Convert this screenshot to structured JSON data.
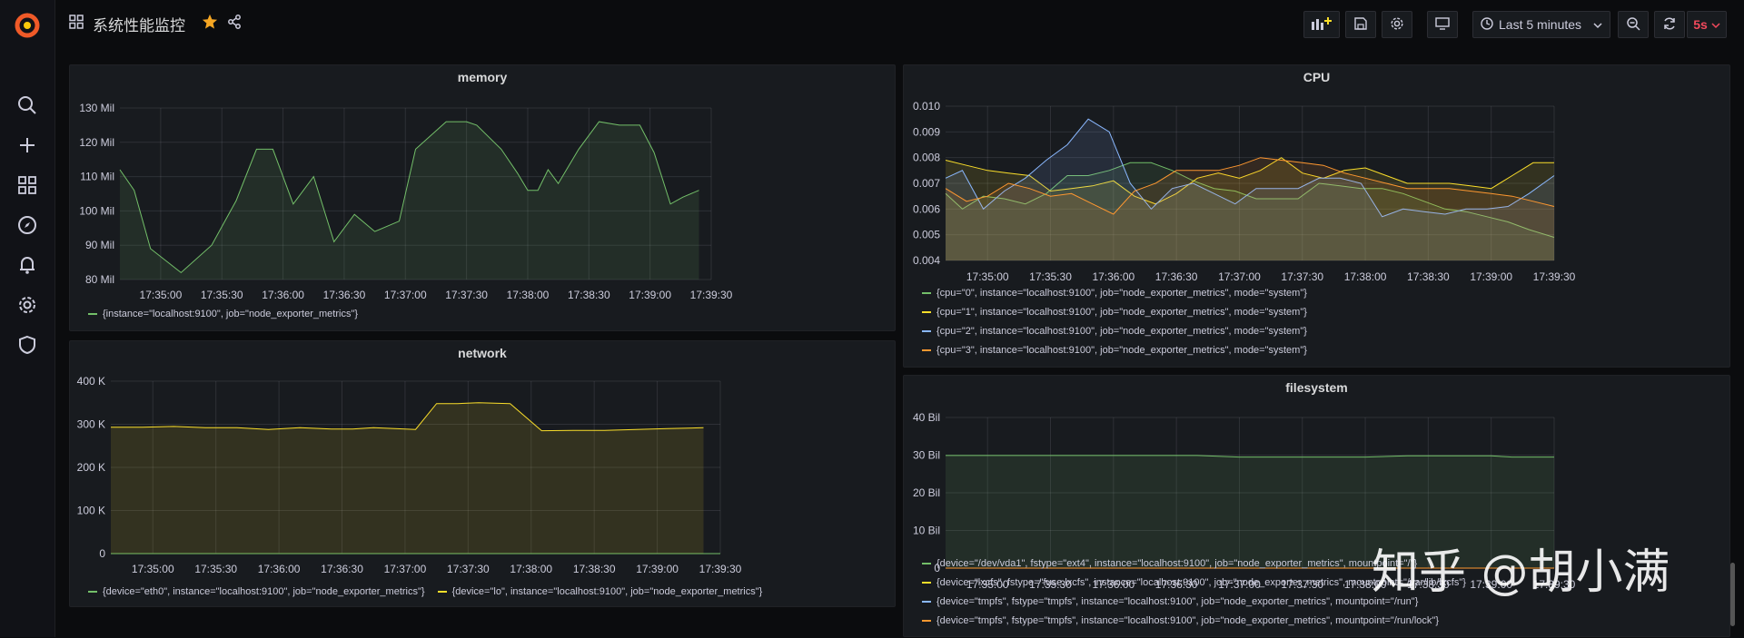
{
  "dashboard": {
    "title": "系统性能监控",
    "time_range": "Last 5 minutes",
    "refresh": "5s"
  },
  "colors": {
    "green": "#73bf69",
    "yellow": "#fade2a",
    "blue": "#8ab8ff",
    "orange": "#ff9830",
    "red": "#f2495c",
    "lightblue": "#5794f2",
    "tealblue": "#6ed0e0",
    "gold": "#eab839"
  },
  "watermark": "知乎 @胡小满",
  "chart_data": [
    {
      "id": "memory",
      "type": "area",
      "title": "memory",
      "ylim": [
        80,
        130
      ],
      "yticks": [
        80,
        90,
        100,
        110,
        120,
        130
      ],
      "ytick_labels": [
        "80 Mil",
        "90 Mil",
        "100 Mil",
        "110 Mil",
        "120 Mil",
        "130 Mil"
      ],
      "xlim": [
        0,
        290
      ],
      "xticks": [
        20,
        50,
        80,
        110,
        140,
        170,
        200,
        230,
        260,
        290
      ],
      "xtick_labels": [
        "17:35:00",
        "17:35:30",
        "17:36:00",
        "17:36:30",
        "17:37:00",
        "17:37:30",
        "17:38:00",
        "17:38:30",
        "17:39:00",
        "17:39:30"
      ],
      "series": [
        {
          "name": "{instance=\"localhost:9100\", job=\"node_exporter_metrics\"}",
          "color": "#73bf69",
          "x": [
            0,
            7,
            15,
            30,
            45,
            57,
            67,
            75,
            85,
            95,
            105,
            115,
            125,
            137,
            145,
            160,
            170,
            175,
            187,
            195,
            200,
            205,
            210,
            215,
            225,
            235,
            245,
            255,
            262,
            270,
            276,
            284
          ],
          "y": [
            112,
            106,
            89,
            82,
            90,
            103,
            118,
            118,
            102,
            110,
            91,
            99,
            94,
            97,
            118,
            126,
            126,
            125,
            118,
            111,
            106,
            106,
            112,
            108,
            118,
            126,
            125,
            125,
            117,
            102,
            104,
            106
          ]
        }
      ],
      "legend": "bottom"
    },
    {
      "id": "network",
      "type": "area",
      "title": "network",
      "ylim": [
        0,
        400000
      ],
      "yticks": [
        0,
        100000,
        200000,
        300000,
        400000
      ],
      "ytick_labels": [
        "0",
        "100 K",
        "200 K",
        "300 K",
        "400 K"
      ],
      "xlim": [
        0,
        290
      ],
      "xticks": [
        20,
        50,
        80,
        110,
        140,
        170,
        200,
        230,
        260,
        290
      ],
      "xtick_labels": [
        "17:35:00",
        "17:35:30",
        "17:36:00",
        "17:36:30",
        "17:37:00",
        "17:37:30",
        "17:38:00",
        "17:38:30",
        "17:39:00",
        "17:39:30"
      ],
      "series": [
        {
          "name": "{device=\"eth0\", instance=\"localhost:9100\", job=\"node_exporter_metrics\"}",
          "color": "#73bf69",
          "x": [
            0,
            290
          ],
          "y": [
            0,
            0
          ]
        },
        {
          "name": "{device=\"lo\", instance=\"localhost:9100\", job=\"node_exporter_metrics\"}",
          "color": "#fade2a",
          "x": [
            0,
            15,
            30,
            45,
            60,
            75,
            90,
            105,
            115,
            125,
            135,
            145,
            155,
            165,
            175,
            190,
            205,
            220,
            235,
            250,
            265,
            282
          ],
          "y": [
            293000,
            293000,
            295000,
            292000,
            292000,
            288000,
            292000,
            289000,
            289000,
            292000,
            290000,
            288000,
            348000,
            348000,
            350000,
            348000,
            285000,
            286000,
            286000,
            288000,
            290000,
            292000
          ]
        }
      ],
      "legend": "bottom"
    },
    {
      "id": "cpu",
      "type": "area",
      "title": "CPU",
      "ylim": [
        0.004,
        0.01
      ],
      "yticks": [
        0.004,
        0.005,
        0.006,
        0.007,
        0.008,
        0.009,
        0.01
      ],
      "ytick_labels": [
        "0.004",
        "0.005",
        "0.006",
        "0.007",
        "0.008",
        "0.009",
        "0.010"
      ],
      "xlim": [
        0,
        290
      ],
      "xticks": [
        20,
        50,
        80,
        110,
        140,
        170,
        200,
        230,
        260,
        290
      ],
      "xtick_labels": [
        "17:35:00",
        "17:35:30",
        "17:36:00",
        "17:36:30",
        "17:37:00",
        "17:37:30",
        "17:38:00",
        "17:38:30",
        "17:39:00",
        "17:39:30"
      ],
      "series": [
        {
          "name": "{cpu=\"0\", instance=\"localhost:9100\", job=\"node_exporter_metrics\", mode=\"system\"}",
          "color": "#73bf69",
          "x": [
            0,
            8,
            18,
            28,
            38,
            48,
            58,
            68,
            78,
            88,
            98,
            108,
            118,
            128,
            138,
            148,
            158,
            168,
            178,
            188,
            198,
            208,
            218,
            228,
            238,
            248,
            258,
            268,
            278,
            290
          ],
          "y": [
            0.0066,
            0.006,
            0.0065,
            0.0064,
            0.0062,
            0.0066,
            0.0073,
            0.0073,
            0.0075,
            0.0078,
            0.0078,
            0.0075,
            0.0071,
            0.0068,
            0.0067,
            0.0064,
            0.0064,
            0.0064,
            0.007,
            0.0069,
            0.0068,
            0.0068,
            0.0066,
            0.0063,
            0.006,
            0.0059,
            0.0057,
            0.0055,
            0.0052,
            0.0049
          ]
        },
        {
          "name": "{cpu=\"1\", instance=\"localhost:9100\", job=\"node_exporter_metrics\", mode=\"system\"}",
          "color": "#fade2a",
          "x": [
            0,
            10,
            20,
            30,
            40,
            50,
            60,
            70,
            80,
            90,
            100,
            110,
            120,
            130,
            140,
            150,
            160,
            170,
            180,
            190,
            200,
            210,
            220,
            230,
            240,
            250,
            260,
            270,
            280,
            290
          ],
          "y": [
            0.0079,
            0.0077,
            0.0075,
            0.0074,
            0.0073,
            0.0067,
            0.0068,
            0.0069,
            0.0071,
            0.0065,
            0.0062,
            0.0066,
            0.0072,
            0.0074,
            0.0072,
            0.0075,
            0.008,
            0.0074,
            0.0072,
            0.0075,
            0.0076,
            0.0073,
            0.007,
            0.007,
            0.007,
            0.0069,
            0.0068,
            0.0073,
            0.0078,
            0.0078
          ]
        },
        {
          "name": "{cpu=\"2\", instance=\"localhost:9100\", job=\"node_exporter_metrics\", mode=\"system\"}",
          "color": "#8ab8ff",
          "x": [
            0,
            8,
            18,
            28,
            38,
            48,
            58,
            68,
            78,
            88,
            98,
            108,
            118,
            128,
            138,
            148,
            158,
            168,
            178,
            188,
            198,
            208,
            218,
            228,
            238,
            248,
            258,
            268,
            278,
            290
          ],
          "y": [
            0.0072,
            0.0075,
            0.006,
            0.0067,
            0.0072,
            0.0079,
            0.0085,
            0.0095,
            0.009,
            0.007,
            0.006,
            0.0068,
            0.007,
            0.0066,
            0.0062,
            0.0068,
            0.0068,
            0.0068,
            0.0072,
            0.0072,
            0.007,
            0.0057,
            0.006,
            0.0059,
            0.0058,
            0.006,
            0.006,
            0.0061,
            0.0066,
            0.0073
          ]
        },
        {
          "name": "{cpu=\"3\", instance=\"localhost:9100\", job=\"node_exporter_metrics\", mode=\"system\"}",
          "color": "#ff9830",
          "x": [
            0,
            10,
            20,
            30,
            40,
            50,
            60,
            70,
            80,
            90,
            100,
            110,
            120,
            130,
            140,
            150,
            160,
            170,
            180,
            190,
            200,
            210,
            220,
            230,
            240,
            250,
            260,
            270,
            280,
            290
          ],
          "y": [
            0.0068,
            0.0063,
            0.0065,
            0.007,
            0.0068,
            0.0065,
            0.0066,
            0.0062,
            0.0058,
            0.0067,
            0.007,
            0.0075,
            0.0075,
            0.0075,
            0.0077,
            0.008,
            0.0079,
            0.0078,
            0.0077,
            0.0074,
            0.0072,
            0.007,
            0.0068,
            0.0068,
            0.0068,
            0.0067,
            0.0066,
            0.0065,
            0.0063,
            0.0061
          ]
        }
      ],
      "legend": "bottom"
    },
    {
      "id": "filesystem",
      "type": "area",
      "title": "filesystem",
      "ylim": [
        0,
        40000000000
      ],
      "yticks": [
        0,
        10000000000,
        20000000000,
        30000000000,
        40000000000
      ],
      "ytick_labels": [
        "0",
        "10 Bil",
        "20 Bil",
        "30 Bil",
        "40 Bil"
      ],
      "xlim": [
        0,
        290
      ],
      "xticks": [
        20,
        50,
        80,
        110,
        140,
        170,
        200,
        230,
        260,
        290
      ],
      "xtick_labels": [
        "17:35:00",
        "17:35:30",
        "17:36:00",
        "17:36:30",
        "17:37:00",
        "17:37:30",
        "17:38:00",
        "17:38:30",
        "17:39:00",
        "17:39:30"
      ],
      "series": [
        {
          "name": "{device=\"/dev/vda1\", fstype=\"ext4\", instance=\"localhost:9100\", job=\"node_exporter_metrics\", mountpoint=\"/\"}",
          "color": "#73bf69",
          "x": [
            0,
            40,
            80,
            120,
            140,
            160,
            180,
            200,
            220,
            240,
            260,
            270,
            290
          ],
          "y": [
            29900000000,
            29900000000,
            29900000000,
            29900000000,
            29500000000,
            29500000000,
            29500000000,
            29500000000,
            29800000000,
            29800000000,
            29800000000,
            29500000000,
            29500000000
          ]
        },
        {
          "name": "{device=\"lxcfs\", fstype=\"fuse.lxcfs\", instance=\"localhost:9100\", job=\"node_exporter_metrics\", mountpoint=\"/var/lib/lxcfs\"}",
          "color": "#fade2a",
          "x": [
            0,
            290
          ],
          "y": [
            0,
            0
          ]
        },
        {
          "name": "{device=\"tmpfs\", fstype=\"tmpfs\", instance=\"localhost:9100\", job=\"node_exporter_metrics\", mountpoint=\"/run\"}",
          "color": "#8ab8ff",
          "x": [
            0,
            290
          ],
          "y": [
            0,
            0
          ]
        },
        {
          "name": "{device=\"tmpfs\", fstype=\"tmpfs\", instance=\"localhost:9100\", job=\"node_exporter_metrics\", mountpoint=\"/run/lock\"}",
          "color": "#ff9830",
          "x": [
            0,
            290
          ],
          "y": [
            0,
            0
          ]
        }
      ],
      "legend": "bottom"
    }
  ]
}
